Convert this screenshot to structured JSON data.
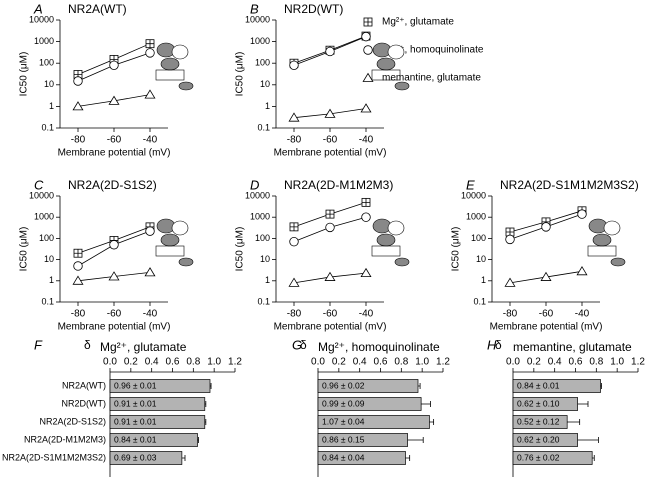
{
  "legend": [
    {
      "name": "Mg²⁺, glutamate",
      "marker": "square"
    },
    {
      "name": "Mg²⁺, homoquinolinate",
      "marker": "circle"
    },
    {
      "name": "memantine, glutamate",
      "marker": "triangle"
    }
  ],
  "chart_data": [
    {
      "type": "line",
      "panel": "A",
      "title": "NR2A(WT)",
      "x": [
        -80,
        -60,
        -40
      ],
      "xlim": [
        -90,
        -30
      ],
      "xticks": [
        -80,
        -60,
        -40
      ],
      "ylim": [
        0.1,
        10000
      ],
      "yticks": [
        0.1,
        1,
        10,
        100,
        1000,
        10000
      ],
      "log_y": true,
      "xlabel": "Membrane potential (mV)",
      "ylabel": "IC50 (μM)",
      "series": [
        {
          "marker": "square",
          "values": [
            30,
            150,
            800
          ]
        },
        {
          "marker": "circle",
          "values": [
            15,
            80,
            300
          ]
        },
        {
          "marker": "triangle",
          "values": [
            1,
            1.8,
            3.5
          ]
        }
      ]
    },
    {
      "type": "line",
      "panel": "B",
      "title": "NR2D(WT)",
      "x": [
        -80,
        -60,
        -40
      ],
      "xlim": [
        -90,
        -30
      ],
      "xticks": [
        -80,
        -60,
        -40
      ],
      "ylim": [
        0.1,
        10000
      ],
      "yticks": [
        0.1,
        1,
        10,
        100,
        1000,
        10000
      ],
      "log_y": true,
      "xlabel": "Membrane potential (mV)",
      "ylabel": "IC50 (μM)",
      "series": [
        {
          "marker": "square",
          "values": [
            100,
            400,
            1800
          ]
        },
        {
          "marker": "circle",
          "values": [
            80,
            350,
            1700
          ]
        },
        {
          "marker": "triangle",
          "values": [
            0.3,
            0.45,
            0.8
          ]
        }
      ]
    },
    {
      "type": "line",
      "panel": "C",
      "title": "NR2A(2D-S1S2)",
      "x": [
        -80,
        -60,
        -40
      ],
      "xlim": [
        -90,
        -30
      ],
      "xticks": [
        -80,
        -60,
        -40
      ],
      "ylim": [
        0.1,
        10000
      ],
      "yticks": [
        0.1,
        1,
        10,
        100,
        1000,
        10000
      ],
      "log_y": true,
      "xlabel": "Membrane potential (mV)",
      "ylabel": "IC50 (μM)",
      "series": [
        {
          "marker": "square",
          "values": [
            20,
            80,
            350
          ]
        },
        {
          "marker": "circle",
          "values": [
            5,
            50,
            220
          ]
        },
        {
          "marker": "triangle",
          "values": [
            1,
            1.6,
            2.5
          ]
        }
      ]
    },
    {
      "type": "line",
      "panel": "D",
      "title": "NR2A(2D-M1M2M3)",
      "x": [
        -80,
        -60,
        -40
      ],
      "xlim": [
        -90,
        -30
      ],
      "xticks": [
        -80,
        -60,
        -40
      ],
      "ylim": [
        0.1,
        10000
      ],
      "yticks": [
        0.1,
        1,
        10,
        100,
        1000,
        10000
      ],
      "log_y": true,
      "xlabel": "Membrane potential (mV)",
      "ylabel": "IC50 (μM)",
      "series": [
        {
          "marker": "square",
          "values": [
            350,
            1400,
            5000
          ]
        },
        {
          "marker": "circle",
          "values": [
            70,
            330,
            1000
          ]
        },
        {
          "marker": "triangle",
          "values": [
            0.8,
            1.5,
            2.3
          ]
        }
      ]
    },
    {
      "type": "line",
      "panel": "E",
      "title": "NR2A(2D-S1M1M2M3S2)",
      "x": [
        -80,
        -60,
        -40
      ],
      "xlim": [
        -90,
        -30
      ],
      "xticks": [
        -80,
        -60,
        -40
      ],
      "ylim": [
        0.1,
        10000
      ],
      "yticks": [
        0.1,
        1,
        10,
        100,
        1000,
        10000
      ],
      "log_y": true,
      "xlabel": "Membrane potential (mV)",
      "ylabel": "IC50 (μM)",
      "series": [
        {
          "marker": "square",
          "values": [
            200,
            600,
            2000
          ]
        },
        {
          "marker": "circle",
          "values": [
            90,
            350,
            1400
          ]
        },
        {
          "marker": "triangle",
          "values": [
            0.8,
            1.5,
            2.8
          ]
        }
      ]
    },
    {
      "type": "hbar",
      "panel": "F",
      "symbol": "δ",
      "xlabel": "Mg²⁺, glutamate",
      "color": "#b3b3b3",
      "xlim": [
        0,
        1.2
      ],
      "xticks": [
        {
          "value": 0,
          "label": "0.0"
        },
        0.2,
        0.4,
        0.6,
        0.8,
        {
          "value": 1,
          "label": "1.0"
        },
        1.2
      ],
      "categories": [
        "NR2A(WT)",
        "NR2D(WT)",
        "NR2A(2D-S1S2)",
        "NR2A(2D-M1M2M3)",
        "NR2A(2D-S1M1M2M3S2)"
      ],
      "values": [
        0.96,
        0.91,
        0.91,
        0.84,
        0.69
      ],
      "errors": [
        0.01,
        0.01,
        0.01,
        0.01,
        0.03
      ],
      "value_labels": [
        "0.96 ± 0.01",
        "0.91 ± 0.01",
        "0.91 ± 0.01",
        "0.84 ± 0.01",
        "0.69 ± 0.03"
      ]
    },
    {
      "type": "hbar",
      "panel": "G",
      "symbol": "δ",
      "xlabel": "Mg²⁺, homoquinolinate",
      "color": "#b3b3b3",
      "xlim": [
        0,
        1.2
      ],
      "xticks": [
        {
          "value": 0,
          "label": "0.0"
        },
        0.2,
        0.4,
        0.6,
        0.8,
        {
          "value": 1,
          "label": "1.0"
        },
        1.2
      ],
      "values": [
        0.96,
        0.99,
        1.07,
        0.86,
        0.84
      ],
      "errors": [
        0.02,
        0.09,
        0.04,
        0.15,
        0.04
      ],
      "value_labels": [
        "0.96 ± 0.02",
        "0.99 ± 0.09",
        "1.07 ± 0.04",
        "0.86 ± 0.15",
        "0.84 ± 0.04"
      ]
    },
    {
      "type": "hbar",
      "panel": "H",
      "symbol": "δ",
      "xlabel": "memantine, glutamate",
      "color": "#b3b3b3",
      "xlim": [
        0,
        1.2
      ],
      "xticks": [
        {
          "value": 0,
          "label": "0.0"
        },
        0.2,
        0.4,
        0.6,
        0.8,
        {
          "value": 1,
          "label": "1.0"
        },
        1.2
      ],
      "values": [
        0.84,
        0.62,
        0.52,
        0.62,
        0.76
      ],
      "errors": [
        0.01,
        0.1,
        0.12,
        0.2,
        0.02
      ],
      "value_labels": [
        "0.84 ± 0.01",
        "0.62 ± 0.10",
        "0.52 ± 0.12",
        "0.62 ± 0.20",
        "0.76 ± 0.02"
      ]
    }
  ]
}
